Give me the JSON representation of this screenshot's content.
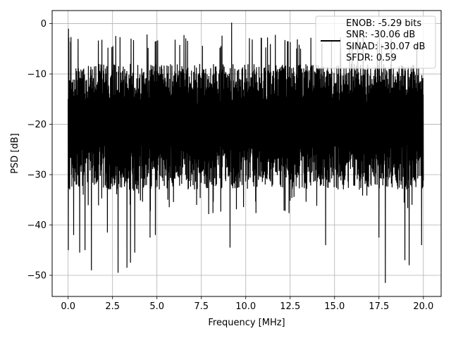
{
  "chart_data": {
    "type": "line",
    "title": "",
    "xlabel": "Frequency [MHz]",
    "ylabel": "PSD [dB]",
    "xlim": [
      -0.9,
      21.0
    ],
    "ylim": [
      -54.2,
      2.6
    ],
    "xticks": [
      0.0,
      2.5,
      5.0,
      7.5,
      10.0,
      12.5,
      15.0,
      17.5,
      20.0
    ],
    "xtick_labels": [
      "0.0",
      "2.5",
      "5.0",
      "7.5",
      "10.0",
      "12.5",
      "15.0",
      "17.5",
      "20.0"
    ],
    "yticks": [
      0,
      -10,
      -20,
      -30,
      -40,
      -50
    ],
    "ytick_labels": [
      "0",
      "−10",
      "−20",
      "−30",
      "−40",
      "−50"
    ],
    "grid": true,
    "legend_position": "top-right",
    "legend_lines": [
      "ENOB: -5.29 bits",
      "SNR: -30.06 dB",
      "SINAD: -30.07 dB",
      "SFDR: 0.59"
    ],
    "line_color": "#000000",
    "series": [
      {
        "x_start": 0.0,
        "x_end": 20.0,
        "num_points": 2000,
        "envelope": {
          "upper_typical": -7,
          "lower_typical": -28,
          "max_peak": 0.2,
          "max_peak_x": 9.2,
          "spike_lows": [
            {
              "x": 0.0,
              "y": -45.0
            },
            {
              "x": 0.3,
              "y": -42.0
            },
            {
              "x": 0.65,
              "y": -45.5
            },
            {
              "x": 0.95,
              "y": -45.0
            },
            {
              "x": 1.3,
              "y": -49.0
            },
            {
              "x": 2.2,
              "y": -41.5
            },
            {
              "x": 2.8,
              "y": -49.5
            },
            {
              "x": 3.3,
              "y": -48.5
            },
            {
              "x": 3.5,
              "y": -47.5
            },
            {
              "x": 3.75,
              "y": -45.5
            },
            {
              "x": 4.6,
              "y": -42.5
            },
            {
              "x": 4.9,
              "y": -42.0
            },
            {
              "x": 9.1,
              "y": -44.5
            },
            {
              "x": 14.5,
              "y": -44.0
            },
            {
              "x": 17.5,
              "y": -42.5
            },
            {
              "x": 17.85,
              "y": -51.5
            },
            {
              "x": 18.95,
              "y": -47.0
            },
            {
              "x": 19.2,
              "y": -48.0
            },
            {
              "x": 19.9,
              "y": -44.0
            }
          ]
        }
      }
    ]
  }
}
